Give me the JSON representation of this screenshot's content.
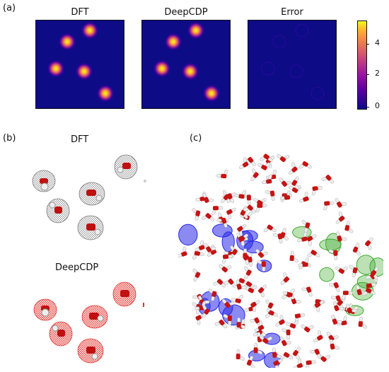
{
  "panel_a": {
    "label": "(a)",
    "maps": [
      {
        "title": "DFT",
        "spots": 5
      },
      {
        "title": "DeepCDP",
        "spots": 5
      },
      {
        "title": "Error",
        "spots": 0
      }
    ],
    "colorbar": {
      "ticks": [
        "4",
        "2",
        "0"
      ],
      "range": [
        0,
        5.3
      ],
      "colormap": "plasma"
    }
  },
  "panel_b": {
    "label": "(b)",
    "top_title": "DFT",
    "bottom_title": "DeepCDP",
    "top_color": "#888888",
    "bottom_color": "#e0322d"
  },
  "panel_c": {
    "label": "(c)",
    "blue_color": "#2a2ae8",
    "green_color": "#3caa2c"
  }
}
